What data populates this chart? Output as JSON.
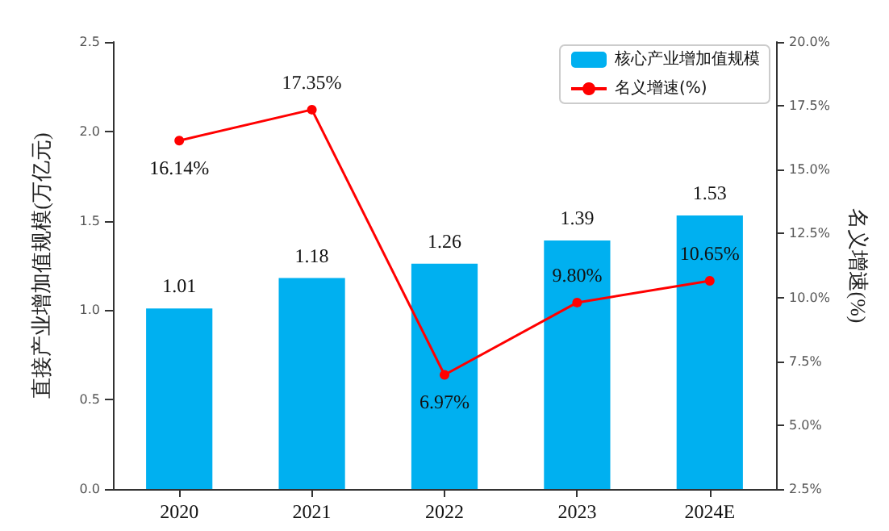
{
  "chart_data": {
    "type": "bar",
    "categories": [
      "2020",
      "2021",
      "2022",
      "2023",
      "2024E"
    ],
    "ylabel": "直接产业增加值规模(万亿元)",
    "y2label": "名义增速(%)",
    "series": [
      {
        "name": "核心产业增加值规模",
        "color": "#00b0f0",
        "values": [
          1.01,
          1.18,
          1.26,
          1.39,
          1.53
        ],
        "value_labels": [
          "1.01",
          "1.18",
          "1.26",
          "1.39",
          "1.53"
        ]
      },
      {
        "name": "名义增速(%)",
        "type": "line",
        "axis": "y2",
        "color": "#ff0000",
        "marker": "circle",
        "values": [
          16.14,
          17.35,
          6.97,
          9.8,
          10.65
        ],
        "value_labels": [
          "16.14%",
          "17.35%",
          "6.97%",
          "9.80%",
          "10.65%"
        ]
      }
    ],
    "ylim": [
      0,
      2.5
    ],
    "yticks": [
      {
        "value": 0,
        "label": "0.0"
      },
      {
        "value": 0.5,
        "label": "0.5"
      },
      {
        "value": 1,
        "label": "1.0"
      },
      {
        "value": 1.5,
        "label": "1.5"
      },
      {
        "value": 2,
        "label": "2.0"
      },
      {
        "value": 2.5,
        "label": "2.5"
      }
    ],
    "y2lim": [
      2.5,
      20
    ],
    "y2ticks": [
      {
        "value": 2.5,
        "label": "2.5%"
      },
      {
        "value": 5,
        "label": "5.0%"
      },
      {
        "value": 7.5,
        "label": "7.5%"
      },
      {
        "value": 10,
        "label": "10.0%"
      },
      {
        "value": 12.5,
        "label": "12.5%"
      },
      {
        "value": 15,
        "label": "15.0%"
      },
      {
        "value": 17.5,
        "label": "17.5%"
      },
      {
        "value": 20,
        "label": "20.0%"
      }
    ],
    "grid": false,
    "legend": "top right"
  }
}
